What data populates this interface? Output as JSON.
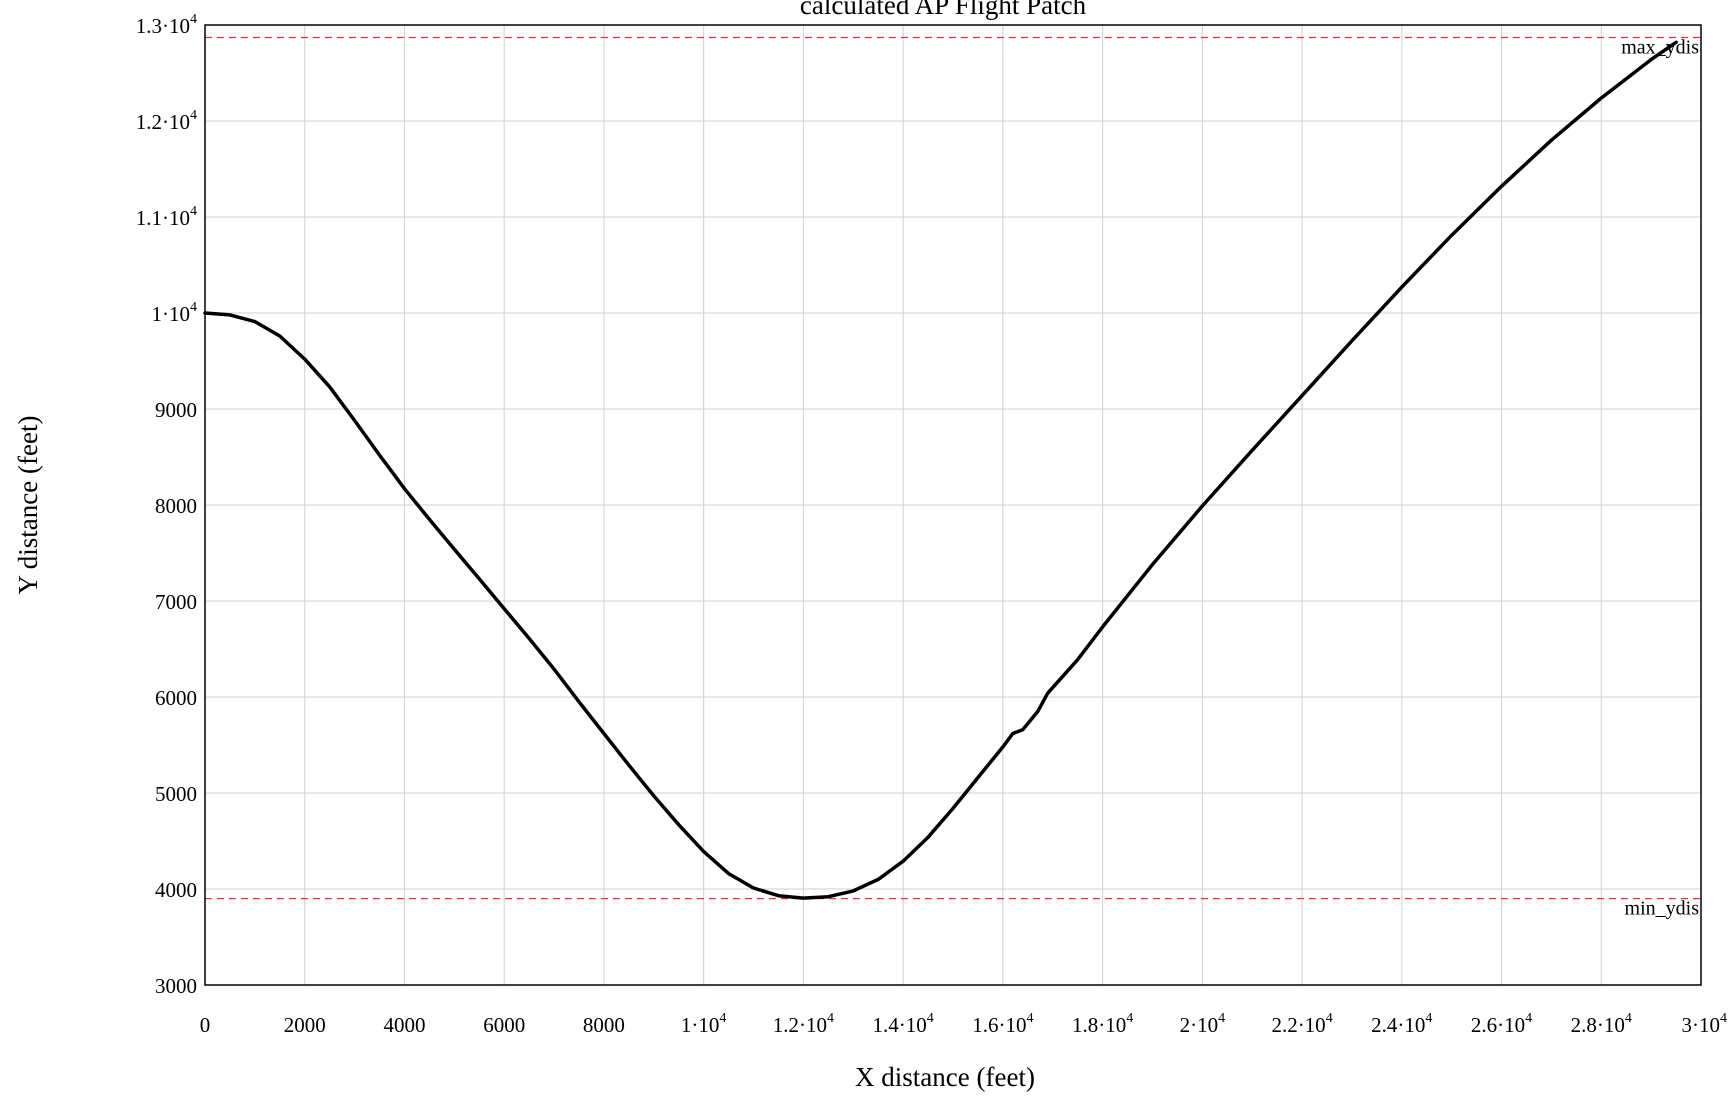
{
  "chart_data": {
    "type": "line",
    "title": "calculated AP Flight Patch",
    "xlabel": "X distance (feet)",
    "ylabel": "Y distance (feet)",
    "xlim": [
      0,
      30000
    ],
    "ylim": [
      3000,
      13000
    ],
    "grid": true,
    "x_ticks": [
      {
        "value": 0,
        "label": "0"
      },
      {
        "value": 2000,
        "label": "2000"
      },
      {
        "value": 4000,
        "label": "4000"
      },
      {
        "value": 6000,
        "label": "6000"
      },
      {
        "value": 8000,
        "label": "8000"
      },
      {
        "value": 10000,
        "label": "1·10",
        "exp": "4"
      },
      {
        "value": 12000,
        "label": "1.2·10",
        "exp": "4"
      },
      {
        "value": 14000,
        "label": "1.4·10",
        "exp": "4"
      },
      {
        "value": 16000,
        "label": "1.6·10",
        "exp": "4"
      },
      {
        "value": 18000,
        "label": "1.8·10",
        "exp": "4"
      },
      {
        "value": 20000,
        "label": "2·10",
        "exp": "4"
      },
      {
        "value": 22000,
        "label": "2.2·10",
        "exp": "4"
      },
      {
        "value": 24000,
        "label": "2.4·10",
        "exp": "4"
      },
      {
        "value": 26000,
        "label": "2.6·10",
        "exp": "4"
      },
      {
        "value": 28000,
        "label": "2.8·10",
        "exp": "4"
      },
      {
        "value": 30000,
        "label": "3·10",
        "exp": "4"
      }
    ],
    "y_ticks": [
      {
        "value": 3000,
        "label": "3000"
      },
      {
        "value": 4000,
        "label": "4000"
      },
      {
        "value": 5000,
        "label": "5000"
      },
      {
        "value": 6000,
        "label": "6000"
      },
      {
        "value": 7000,
        "label": "7000"
      },
      {
        "value": 8000,
        "label": "8000"
      },
      {
        "value": 9000,
        "label": "9000"
      },
      {
        "value": 10000,
        "label": "1·10",
        "exp": "4"
      },
      {
        "value": 11000,
        "label": "1.1·10",
        "exp": "4"
      },
      {
        "value": 12000,
        "label": "1.2·10",
        "exp": "4"
      },
      {
        "value": 13000,
        "label": "1.3·10",
        "exp": "4"
      }
    ],
    "reference_lines": [
      {
        "label": "max_ydis",
        "y": 12870,
        "color": "#e8323c"
      },
      {
        "label": "min_ydis",
        "y": 3900,
        "color": "#e8323c"
      }
    ],
    "series": [
      {
        "color": "#000000",
        "points": [
          [
            0,
            10000
          ],
          [
            500,
            9980
          ],
          [
            1000,
            9910
          ],
          [
            1500,
            9760
          ],
          [
            2000,
            9520
          ],
          [
            2500,
            9230
          ],
          [
            3000,
            8880
          ],
          [
            3500,
            8520
          ],
          [
            4000,
            8170
          ],
          [
            4500,
            7850
          ],
          [
            5000,
            7540
          ],
          [
            5500,
            7230
          ],
          [
            6000,
            6920
          ],
          [
            6500,
            6610
          ],
          [
            7000,
            6290
          ],
          [
            7500,
            5950
          ],
          [
            8000,
            5620
          ],
          [
            8500,
            5290
          ],
          [
            9000,
            4970
          ],
          [
            9500,
            4670
          ],
          [
            10000,
            4390
          ],
          [
            10500,
            4160
          ],
          [
            11000,
            4010
          ],
          [
            11500,
            3930
          ],
          [
            12000,
            3905
          ],
          [
            12500,
            3920
          ],
          [
            13000,
            3980
          ],
          [
            13500,
            4100
          ],
          [
            14000,
            4290
          ],
          [
            14500,
            4540
          ],
          [
            15000,
            4840
          ],
          [
            15500,
            5160
          ],
          [
            16000,
            5480
          ],
          [
            16200,
            5620
          ],
          [
            16400,
            5660
          ],
          [
            16700,
            5850
          ],
          [
            16900,
            6040
          ],
          [
            17500,
            6390
          ],
          [
            18000,
            6730
          ],
          [
            19000,
            7380
          ],
          [
            20000,
            7990
          ],
          [
            21000,
            8570
          ],
          [
            22000,
            9140
          ],
          [
            23000,
            9710
          ],
          [
            24000,
            10270
          ],
          [
            25000,
            10810
          ],
          [
            26000,
            11320
          ],
          [
            27000,
            11800
          ],
          [
            28000,
            12240
          ],
          [
            29000,
            12640
          ],
          [
            29500,
            12820
          ]
        ]
      }
    ]
  }
}
